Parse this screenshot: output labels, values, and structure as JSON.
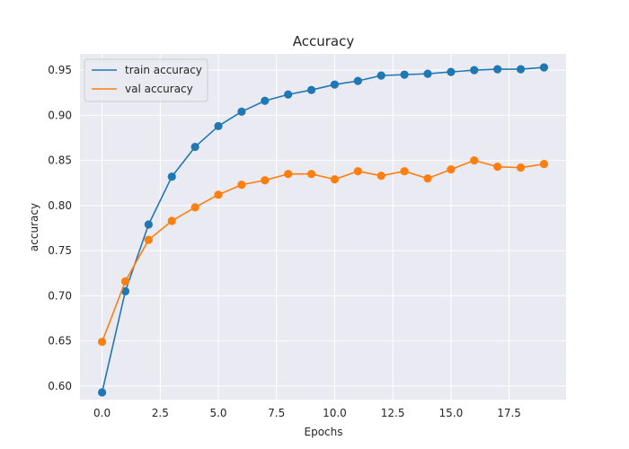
{
  "chart_data": {
    "type": "line",
    "title": "Accuracy",
    "xlabel": "Epochs",
    "ylabel": "accuracy",
    "xlim": [
      -0.95,
      19.95
    ],
    "ylim": [
      0.585,
      0.968
    ],
    "xticks": [
      0.0,
      2.5,
      5.0,
      7.5,
      10.0,
      12.5,
      15.0,
      17.5
    ],
    "xtick_labels": [
      "0.0",
      "2.5",
      "5.0",
      "7.5",
      "10.0",
      "12.5",
      "15.0",
      "17.5"
    ],
    "yticks": [
      0.6,
      0.65,
      0.7,
      0.75,
      0.8,
      0.85,
      0.9,
      0.95
    ],
    "ytick_labels": [
      "0.60",
      "0.65",
      "0.70",
      "0.75",
      "0.80",
      "0.85",
      "0.90",
      "0.95"
    ],
    "grid": true,
    "legend_position": "top-left",
    "x": [
      0,
      1,
      2,
      3,
      4,
      5,
      6,
      7,
      8,
      9,
      10,
      11,
      12,
      13,
      14,
      15,
      16,
      17,
      18,
      19
    ],
    "series": [
      {
        "name": "train accuracy",
        "color": "#1f77b4",
        "values": [
          0.593,
          0.705,
          0.779,
          0.832,
          0.865,
          0.888,
          0.904,
          0.916,
          0.923,
          0.928,
          0.934,
          0.938,
          0.944,
          0.945,
          0.946,
          0.948,
          0.95,
          0.951,
          0.951,
          0.953
        ]
      },
      {
        "name": "val accuracy",
        "color": "#ff7f0e",
        "values": [
          0.649,
          0.716,
          0.762,
          0.783,
          0.798,
          0.812,
          0.823,
          0.828,
          0.835,
          0.835,
          0.829,
          0.838,
          0.833,
          0.838,
          0.83,
          0.84,
          0.85,
          0.843,
          0.842,
          0.846
        ]
      }
    ],
    "background_color": "#eaeaf2",
    "grid_color": "#ffffff"
  }
}
